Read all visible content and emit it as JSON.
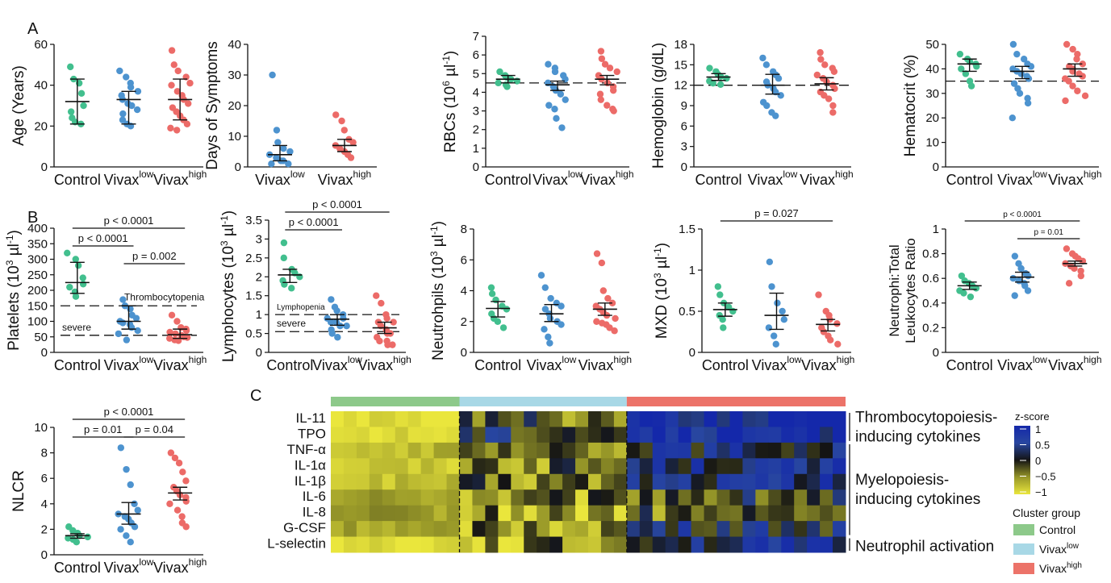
{
  "panels": {
    "A": "A",
    "B": "B",
    "C": "C"
  },
  "legend": {
    "zscore_title": "z-score",
    "zscore_ticks": [
      "1",
      "0.5",
      "0",
      "−0.5",
      "−1"
    ],
    "cluster_title": "Cluster group",
    "clusters": [
      {
        "base": "Control",
        "sup": "",
        "color": "#8dc98a"
      },
      {
        "base": "Vivax",
        "sup": "low",
        "color": "#a8d8e6"
      },
      {
        "base": "Vivax",
        "sup": "high",
        "color": "#ec7369"
      }
    ]
  },
  "groups": {
    "labels": [
      "Control",
      "Vivax",
      "Vivax"
    ],
    "sups": [
      "",
      "low",
      "high"
    ],
    "colors": [
      "#42bf8e",
      "#4d93cf",
      "#ec6b68"
    ]
  },
  "chart_data": [
    {
      "type": "scatter",
      "id": "age",
      "ylabel": "Age (Years)",
      "ylim": [
        0,
        60
      ],
      "yticks": [
        0,
        20,
        40,
        60
      ],
      "groups": [
        0,
        1,
        2
      ],
      "points": [
        [
          49,
          43,
          41,
          36,
          30,
          27,
          24,
          22,
          21
        ],
        [
          47,
          44,
          41,
          39,
          37,
          35,
          33,
          31,
          30,
          28,
          26,
          23,
          21,
          20
        ],
        [
          57,
          50,
          47,
          44,
          41,
          40,
          37,
          35,
          33,
          31,
          29,
          27,
          25,
          23,
          21,
          19,
          18
        ]
      ],
      "summary": [
        [
          32,
          21,
          43
        ],
        [
          33,
          21,
          37
        ],
        [
          33,
          23,
          43
        ]
      ]
    },
    {
      "type": "scatter",
      "id": "days",
      "ylabel": "Days of Symptoms",
      "ylim": [
        0,
        40
      ],
      "yticks": [
        0,
        10,
        20,
        30,
        40
      ],
      "groups": [
        1,
        2
      ],
      "points": [
        [
          30,
          12,
          8,
          6,
          5,
          4,
          3,
          2,
          2,
          1,
          1
        ],
        [
          17,
          15,
          12,
          9,
          8,
          7,
          6,
          5,
          4,
          3
        ]
      ],
      "summary": [
        [
          4,
          2,
          7
        ],
        [
          7,
          5,
          9
        ]
      ]
    },
    {
      "type": "scatter",
      "id": "rbc",
      "ylabel": "RBCs (10",
      "ylabel_sup": "6",
      "ylabel_end": " µl",
      "ylabel_sup2": "-1",
      "ylabel_close": ")",
      "ylim": [
        0,
        7
      ],
      "yticks": [
        0,
        1,
        2,
        3,
        4,
        5,
        6,
        7
      ],
      "groups": [
        0,
        1,
        2
      ],
      "refline": 4.5,
      "points": [
        [
          5.1,
          4.9,
          4.8,
          4.7,
          4.6,
          4.5,
          4.4,
          4.3
        ],
        [
          5.5,
          5.3,
          5.1,
          4.9,
          4.7,
          4.5,
          4.3,
          4.1,
          3.9,
          3.6,
          3.3,
          3.1,
          2.6,
          2.1
        ],
        [
          6.2,
          5.8,
          5.5,
          5.3,
          5.1,
          4.9,
          4.7,
          4.5,
          4.3,
          4.1,
          3.9,
          3.6,
          3.3,
          3.1,
          3.0
        ]
      ],
      "summary": [
        [
          4.7,
          4.5,
          4.9
        ],
        [
          4.4,
          4.1,
          4.6
        ],
        [
          4.7,
          4.4,
          4.9
        ]
      ]
    },
    {
      "type": "scatter",
      "id": "hgb",
      "ylabel": "Hemoglobin (g/dL)",
      "ylim": [
        0,
        18
      ],
      "yticks": [
        0,
        3,
        6,
        9,
        12,
        15,
        18
      ],
      "groups": [
        0,
        1,
        2
      ],
      "refline": 12,
      "points": [
        [
          14.5,
          14,
          13.6,
          13.3,
          13,
          12.6,
          12.3,
          12.1
        ],
        [
          16,
          15,
          14,
          13.5,
          13,
          12.5,
          12,
          11.5,
          11,
          10.5,
          9.5,
          9,
          8,
          7.5
        ],
        [
          16.8,
          15.8,
          15,
          14.5,
          14,
          13.5,
          13,
          12.5,
          12,
          11.5,
          11,
          10.5,
          10,
          9,
          8
        ]
      ],
      "summary": [
        [
          13.2,
          12.7,
          13.7
        ],
        [
          12,
          10.7,
          13.6
        ],
        [
          12.2,
          11.3,
          13.1
        ]
      ]
    },
    {
      "type": "scatter",
      "id": "hct",
      "ylabel": "Hematocrit (%)",
      "ylim": [
        0,
        50
      ],
      "yticks": [
        0,
        10,
        20,
        30,
        40,
        50
      ],
      "groups": [
        0,
        1,
        2
      ],
      "refline": 35,
      "points": [
        [
          46,
          44,
          43,
          42,
          41,
          40,
          38,
          35,
          33
        ],
        [
          50,
          46,
          44,
          42,
          41,
          40,
          39,
          38,
          37,
          36,
          34,
          32,
          30,
          28,
          26,
          20
        ],
        [
          50,
          48,
          46,
          44,
          42,
          41,
          40,
          39,
          38,
          37,
          36,
          35,
          33,
          31,
          29,
          27
        ]
      ],
      "summary": [
        [
          42,
          39,
          44
        ],
        [
          39,
          36,
          41
        ],
        [
          40,
          37,
          42
        ]
      ]
    },
    {
      "type": "scatter",
      "id": "plt",
      "ylabel": "Platelets (10",
      "ylabel_sup": "3",
      "ylabel_end": " µl",
      "ylabel_sup2": "-1",
      "ylabel_close": ")",
      "ylim": [
        0,
        400
      ],
      "yticks": [
        0,
        50,
        100,
        150,
        200,
        250,
        300,
        350,
        400
      ],
      "groups": [
        0,
        1,
        2
      ],
      "hlines": [
        {
          "y": 150,
          "label": "Thrombocytopenia",
          "labelPos": "mid"
        },
        {
          "y": 55,
          "label": "severe",
          "labelPos": "left"
        }
      ],
      "points": [
        [
          320,
          300,
          280,
          240,
          220,
          210,
          195,
          180
        ],
        [
          170,
          150,
          140,
          120,
          110,
          100,
          95,
          90,
          80,
          70,
          60,
          40
        ],
        [
          120,
          100,
          80,
          75,
          70,
          65,
          60,
          55,
          50,
          48,
          45,
          40,
          38
        ]
      ],
      "summary": [
        [
          225,
          190,
          290
        ],
        [
          100,
          75,
          150
        ],
        [
          57,
          45,
          75
        ]
      ],
      "pvals": [
        {
          "a": 0,
          "b": 2,
          "text": "p < 0.0001",
          "level": 0
        },
        {
          "a": 0,
          "b": 1,
          "text": "p < 0.0001",
          "level": 1
        },
        {
          "a": 1,
          "b": 2,
          "text": "p = 0.002",
          "level": 2
        }
      ]
    },
    {
      "type": "scatter",
      "id": "lym",
      "ylabel": "Lymphocytes (10",
      "ylabel_sup": "3",
      "ylabel_end": " µl",
      "ylabel_sup2": "-1",
      "ylabel_close": ")",
      "ylim": [
        0,
        3.5
      ],
      "yticks": [
        0,
        0.5,
        1,
        1.5,
        2,
        2.5,
        3,
        3.5
      ],
      "groups": [
        0,
        1,
        2
      ],
      "hlines": [
        {
          "y": 1.0,
          "label": "Lymphopenia",
          "labelPos": "left"
        },
        {
          "y": 0.55,
          "label": "severe",
          "labelPos": "left"
        }
      ],
      "points": [
        [
          2.9,
          2.5,
          2.2,
          2.1,
          2.0,
          1.9,
          1.8,
          1.7
        ],
        [
          1.4,
          1.2,
          1.1,
          1.0,
          0.9,
          0.9,
          0.8,
          0.8,
          0.7,
          0.7,
          0.6,
          0.5,
          0.4
        ],
        [
          1.5,
          1.3,
          1.0,
          0.9,
          0.8,
          0.8,
          0.7,
          0.6,
          0.5,
          0.5,
          0.4,
          0.3,
          0.3,
          0.2,
          0.2
        ]
      ],
      "summary": [
        [
          2.05,
          1.85,
          2.2
        ],
        [
          0.88,
          0.72,
          1.0
        ],
        [
          0.65,
          0.5,
          0.8
        ]
      ],
      "pvals": [
        {
          "a": 0,
          "b": 2,
          "text": "p < 0.0001",
          "level": 0
        },
        {
          "a": 0,
          "b": 1,
          "text": "p < 0.0001",
          "level": 1
        }
      ]
    },
    {
      "type": "scatter",
      "id": "neu",
      "ylabel": "Neutrohpils (10",
      "ylabel_sup": "3",
      "ylabel_end": " µl",
      "ylabel_sup2": "-1",
      "ylabel_close": ")",
      "ylim": [
        0,
        8
      ],
      "yticks": [
        0,
        2,
        4,
        6,
        8
      ],
      "groups": [
        0,
        1,
        2
      ],
      "points": [
        [
          4.2,
          3.8,
          3.4,
          3.0,
          2.8,
          2.5,
          2.2,
          2.0,
          1.6
        ],
        [
          5.0,
          4.2,
          3.5,
          3.2,
          3.0,
          2.8,
          2.5,
          2.2,
          2.0,
          1.8,
          1.5,
          1.0,
          0.6
        ],
        [
          6.4,
          5.8,
          4.0,
          3.5,
          3.2,
          3.0,
          2.8,
          2.6,
          2.4,
          2.2,
          2.0,
          1.9,
          1.8,
          1.6,
          1.4
        ]
      ],
      "summary": [
        [
          2.85,
          2.3,
          3.3
        ],
        [
          2.5,
          2.0,
          3.1
        ],
        [
          2.8,
          2.4,
          3.2
        ]
      ]
    },
    {
      "type": "scatter",
      "id": "mxd",
      "ylabel": "MXD (10",
      "ylabel_sup": "3",
      "ylabel_end": " µl",
      "ylabel_sup2": "-1",
      "ylabel_close": ")",
      "ylim": [
        0,
        1.5
      ],
      "yticks": [
        0,
        0.5,
        1.0,
        1.5
      ],
      "groups": [
        0,
        1,
        2
      ],
      "points": [
        [
          0.8,
          0.7,
          0.6,
          0.55,
          0.5,
          0.45,
          0.4,
          0.3
        ],
        [
          1.1,
          0.8,
          0.6,
          0.5,
          0.4,
          0.3,
          0.2,
          0.1
        ],
        [
          0.7,
          0.5,
          0.45,
          0.4,
          0.35,
          0.3,
          0.25,
          0.2,
          0.15,
          0.1
        ]
      ],
      "summary": [
        [
          0.52,
          0.44,
          0.6
        ],
        [
          0.45,
          0.28,
          0.72
        ],
        [
          0.34,
          0.26,
          0.4
        ]
      ],
      "pvals": [
        {
          "a": 0,
          "b": 2,
          "text": "p = 0.027",
          "level": 0
        }
      ]
    },
    {
      "type": "scatter",
      "id": "nlr",
      "ylabel": "Neutrophi:Total",
      "ylabel2": "Leukocytes Ratio",
      "ylim": [
        0,
        1.0
      ],
      "yticks": [
        0,
        0.2,
        0.4,
        0.6,
        0.8,
        1.0
      ],
      "groups": [
        0,
        1,
        2
      ],
      "points": [
        [
          0.62,
          0.58,
          0.56,
          0.54,
          0.52,
          0.5,
          0.48,
          0.45
        ],
        [
          0.78,
          0.72,
          0.68,
          0.64,
          0.62,
          0.6,
          0.58,
          0.56,
          0.54,
          0.5,
          0.46
        ],
        [
          0.84,
          0.8,
          0.78,
          0.76,
          0.74,
          0.72,
          0.7,
          0.68,
          0.66,
          0.62,
          0.56
        ]
      ],
      "summary": [
        [
          0.54,
          0.51,
          0.57
        ],
        [
          0.61,
          0.57,
          0.65
        ],
        [
          0.72,
          0.7,
          0.74
        ]
      ],
      "pvals": [
        {
          "a": 0,
          "b": 2,
          "text": "p < 0.0001",
          "level": 0
        },
        {
          "a": 1,
          "b": 2,
          "text": "p = 0.01",
          "level": 1
        }
      ]
    },
    {
      "type": "scatter",
      "id": "nlcr",
      "ylabel": "NLCR",
      "ylim": [
        0,
        10
      ],
      "yticks": [
        0,
        2,
        4,
        6,
        8,
        10
      ],
      "groups": [
        0,
        1,
        2
      ],
      "points": [
        [
          2.2,
          1.9,
          1.7,
          1.5,
          1.4,
          1.3,
          1.2,
          1.0
        ],
        [
          8.4,
          6.7,
          5.5,
          4.0,
          3.5,
          3.2,
          3.0,
          2.8,
          2.5,
          2.2,
          2.0,
          1.5,
          1.0
        ],
        [
          8.0,
          7.6,
          7.2,
          6.5,
          5.8,
          5.3,
          5.0,
          4.7,
          4.5,
          4.2,
          4.0,
          3.5,
          3.0,
          2.5,
          2.2
        ]
      ],
      "summary": [
        [
          1.5,
          1.3,
          1.65
        ],
        [
          3.2,
          2.4,
          4.1
        ],
        [
          4.85,
          4.3,
          5.3
        ]
      ],
      "pvals": [
        {
          "a": 0,
          "b": 2,
          "text": "p < 0.0001",
          "level": 0
        },
        {
          "a": 0,
          "b": 1,
          "text": "p = 0.01",
          "level": 1
        },
        {
          "a": 1,
          "b": 2,
          "text": "p = 0.04",
          "level": 1
        }
      ]
    },
    {
      "type": "heatmap",
      "id": "cytokines",
      "rows": [
        "IL-11",
        "TPO",
        "TNF-α",
        "IL-1α",
        "IL-1β",
        "IL-6",
        "IL-8",
        "G-CSF",
        "L-selectin"
      ],
      "column_groups": [
        {
          "name": "Control",
          "n": 10
        },
        {
          "name": "Vivaxlow",
          "n": 13
        },
        {
          "name": "Vivaxhigh",
          "n": 17
        }
      ],
      "annotations": [
        {
          "text1": "Thrombocytopoiesis-",
          "text2": "inducing cytokines",
          "from": 0,
          "to": 1
        },
        {
          "text1": "Myelopoiesis-",
          "text2": "inducing cytokines",
          "from": 2,
          "to": 7
        },
        {
          "text1": "Neutrophil activation",
          "text2": "",
          "from": 8,
          "to": 8
        }
      ],
      "zlim": [
        -1,
        1
      ]
    }
  ]
}
